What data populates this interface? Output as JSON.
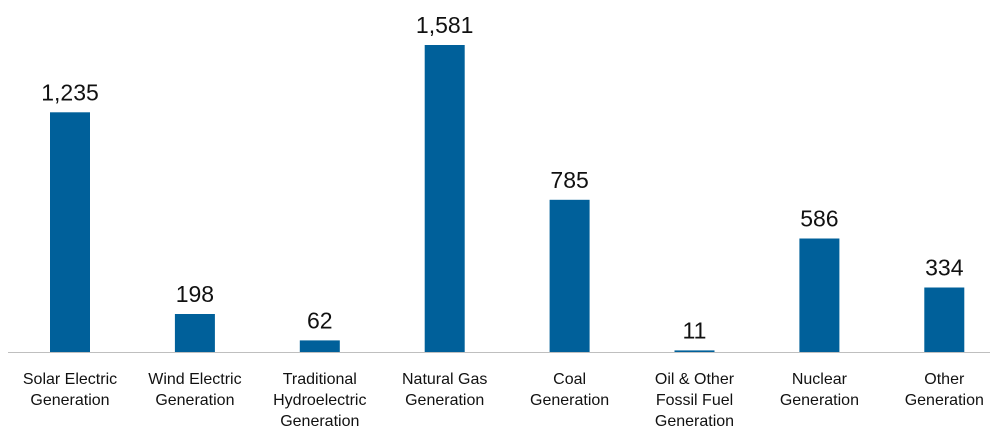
{
  "chart_data": {
    "type": "bar",
    "title": "",
    "xlabel": "",
    "ylabel": "",
    "categories": [
      "Solar Electric Generation",
      "Wind Electric Generation",
      "Traditional Hydroelectric Generation",
      "Natural Gas Generation",
      "Coal Generation",
      "Oil & Other Fossil Fuel Generation",
      "Nuclear Generation",
      "Other Generation"
    ],
    "category_lines": [
      [
        "Solar Electric",
        "Generation"
      ],
      [
        "Wind Electric",
        "Generation"
      ],
      [
        "Traditional",
        "Hydroelectric",
        "Generation"
      ],
      [
        "Natural Gas",
        "Generation"
      ],
      [
        "Coal",
        "Generation"
      ],
      [
        "Oil & Other",
        "Fossil Fuel",
        "Generation"
      ],
      [
        "Nuclear",
        "Generation"
      ],
      [
        "Other",
        "Generation"
      ]
    ],
    "values": [
      1235,
      198,
      62,
      1581,
      785,
      11,
      586,
      334
    ],
    "value_labels": [
      "1,235",
      "198",
      "62",
      "1,581",
      "785",
      "11",
      "586",
      "334"
    ],
    "ylim": [
      0,
      1581
    ],
    "grid": false,
    "legend": "none",
    "colors": {
      "bar": "#00609A",
      "axis": "#BFBFBF",
      "text": "#111111"
    }
  }
}
